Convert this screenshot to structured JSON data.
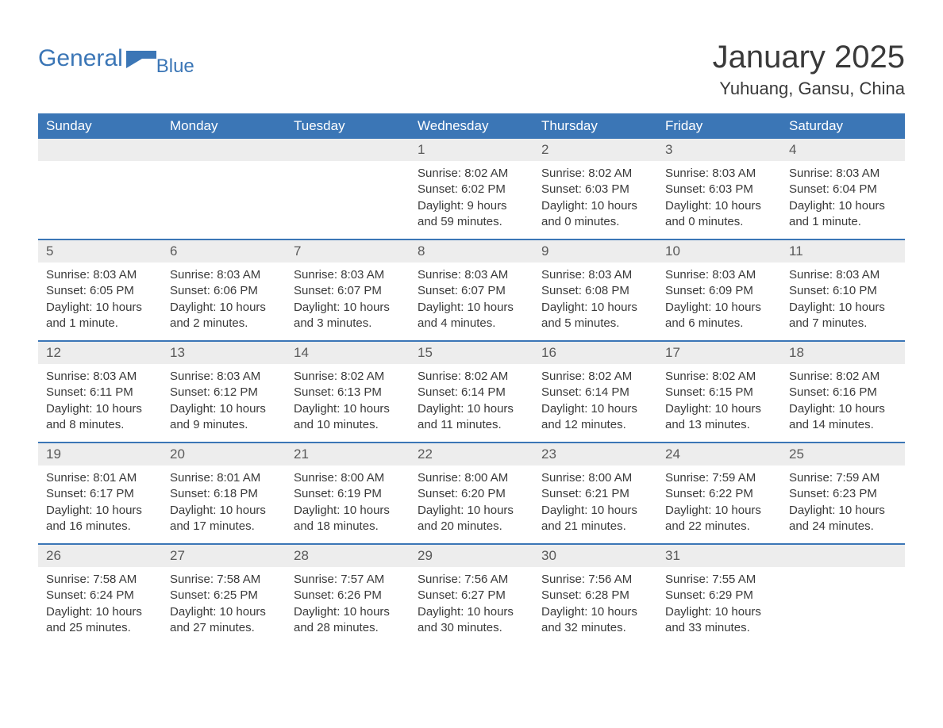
{
  "logo": {
    "main": "General",
    "sub": "Blue",
    "color": "#3b76b6"
  },
  "header": {
    "month_title": "January 2025",
    "location": "Yuhuang, Gansu, China"
  },
  "colors": {
    "header_bg": "#3b76b6",
    "header_text": "#ffffff",
    "daynum_bg": "#ededed",
    "daynum_text": "#5a5a5a",
    "body_text": "#3a3a3a",
    "week_border": "#3b76b6",
    "page_bg": "#ffffff"
  },
  "typography": {
    "month_title_fontsize": 40,
    "location_fontsize": 22,
    "weekday_fontsize": 17,
    "daynum_fontsize": 17,
    "body_fontsize": 15
  },
  "calendar": {
    "type": "table",
    "columns": [
      "Sunday",
      "Monday",
      "Tuesday",
      "Wednesday",
      "Thursday",
      "Friday",
      "Saturday"
    ],
    "weeks": [
      [
        {
          "day": "",
          "sunrise": "",
          "sunset": "",
          "daylight": ""
        },
        {
          "day": "",
          "sunrise": "",
          "sunset": "",
          "daylight": ""
        },
        {
          "day": "",
          "sunrise": "",
          "sunset": "",
          "daylight": ""
        },
        {
          "day": "1",
          "sunrise": "Sunrise: 8:02 AM",
          "sunset": "Sunset: 6:02 PM",
          "daylight": "Daylight: 9 hours and 59 minutes."
        },
        {
          "day": "2",
          "sunrise": "Sunrise: 8:02 AM",
          "sunset": "Sunset: 6:03 PM",
          "daylight": "Daylight: 10 hours and 0 minutes."
        },
        {
          "day": "3",
          "sunrise": "Sunrise: 8:03 AM",
          "sunset": "Sunset: 6:03 PM",
          "daylight": "Daylight: 10 hours and 0 minutes."
        },
        {
          "day": "4",
          "sunrise": "Sunrise: 8:03 AM",
          "sunset": "Sunset: 6:04 PM",
          "daylight": "Daylight: 10 hours and 1 minute."
        }
      ],
      [
        {
          "day": "5",
          "sunrise": "Sunrise: 8:03 AM",
          "sunset": "Sunset: 6:05 PM",
          "daylight": "Daylight: 10 hours and 1 minute."
        },
        {
          "day": "6",
          "sunrise": "Sunrise: 8:03 AM",
          "sunset": "Sunset: 6:06 PM",
          "daylight": "Daylight: 10 hours and 2 minutes."
        },
        {
          "day": "7",
          "sunrise": "Sunrise: 8:03 AM",
          "sunset": "Sunset: 6:07 PM",
          "daylight": "Daylight: 10 hours and 3 minutes."
        },
        {
          "day": "8",
          "sunrise": "Sunrise: 8:03 AM",
          "sunset": "Sunset: 6:07 PM",
          "daylight": "Daylight: 10 hours and 4 minutes."
        },
        {
          "day": "9",
          "sunrise": "Sunrise: 8:03 AM",
          "sunset": "Sunset: 6:08 PM",
          "daylight": "Daylight: 10 hours and 5 minutes."
        },
        {
          "day": "10",
          "sunrise": "Sunrise: 8:03 AM",
          "sunset": "Sunset: 6:09 PM",
          "daylight": "Daylight: 10 hours and 6 minutes."
        },
        {
          "day": "11",
          "sunrise": "Sunrise: 8:03 AM",
          "sunset": "Sunset: 6:10 PM",
          "daylight": "Daylight: 10 hours and 7 minutes."
        }
      ],
      [
        {
          "day": "12",
          "sunrise": "Sunrise: 8:03 AM",
          "sunset": "Sunset: 6:11 PM",
          "daylight": "Daylight: 10 hours and 8 minutes."
        },
        {
          "day": "13",
          "sunrise": "Sunrise: 8:03 AM",
          "sunset": "Sunset: 6:12 PM",
          "daylight": "Daylight: 10 hours and 9 minutes."
        },
        {
          "day": "14",
          "sunrise": "Sunrise: 8:02 AM",
          "sunset": "Sunset: 6:13 PM",
          "daylight": "Daylight: 10 hours and 10 minutes."
        },
        {
          "day": "15",
          "sunrise": "Sunrise: 8:02 AM",
          "sunset": "Sunset: 6:14 PM",
          "daylight": "Daylight: 10 hours and 11 minutes."
        },
        {
          "day": "16",
          "sunrise": "Sunrise: 8:02 AM",
          "sunset": "Sunset: 6:14 PM",
          "daylight": "Daylight: 10 hours and 12 minutes."
        },
        {
          "day": "17",
          "sunrise": "Sunrise: 8:02 AM",
          "sunset": "Sunset: 6:15 PM",
          "daylight": "Daylight: 10 hours and 13 minutes."
        },
        {
          "day": "18",
          "sunrise": "Sunrise: 8:02 AM",
          "sunset": "Sunset: 6:16 PM",
          "daylight": "Daylight: 10 hours and 14 minutes."
        }
      ],
      [
        {
          "day": "19",
          "sunrise": "Sunrise: 8:01 AM",
          "sunset": "Sunset: 6:17 PM",
          "daylight": "Daylight: 10 hours and 16 minutes."
        },
        {
          "day": "20",
          "sunrise": "Sunrise: 8:01 AM",
          "sunset": "Sunset: 6:18 PM",
          "daylight": "Daylight: 10 hours and 17 minutes."
        },
        {
          "day": "21",
          "sunrise": "Sunrise: 8:00 AM",
          "sunset": "Sunset: 6:19 PM",
          "daylight": "Daylight: 10 hours and 18 minutes."
        },
        {
          "day": "22",
          "sunrise": "Sunrise: 8:00 AM",
          "sunset": "Sunset: 6:20 PM",
          "daylight": "Daylight: 10 hours and 20 minutes."
        },
        {
          "day": "23",
          "sunrise": "Sunrise: 8:00 AM",
          "sunset": "Sunset: 6:21 PM",
          "daylight": "Daylight: 10 hours and 21 minutes."
        },
        {
          "day": "24",
          "sunrise": "Sunrise: 7:59 AM",
          "sunset": "Sunset: 6:22 PM",
          "daylight": "Daylight: 10 hours and 22 minutes."
        },
        {
          "day": "25",
          "sunrise": "Sunrise: 7:59 AM",
          "sunset": "Sunset: 6:23 PM",
          "daylight": "Daylight: 10 hours and 24 minutes."
        }
      ],
      [
        {
          "day": "26",
          "sunrise": "Sunrise: 7:58 AM",
          "sunset": "Sunset: 6:24 PM",
          "daylight": "Daylight: 10 hours and 25 minutes."
        },
        {
          "day": "27",
          "sunrise": "Sunrise: 7:58 AM",
          "sunset": "Sunset: 6:25 PM",
          "daylight": "Daylight: 10 hours and 27 minutes."
        },
        {
          "day": "28",
          "sunrise": "Sunrise: 7:57 AM",
          "sunset": "Sunset: 6:26 PM",
          "daylight": "Daylight: 10 hours and 28 minutes."
        },
        {
          "day": "29",
          "sunrise": "Sunrise: 7:56 AM",
          "sunset": "Sunset: 6:27 PM",
          "daylight": "Daylight: 10 hours and 30 minutes."
        },
        {
          "day": "30",
          "sunrise": "Sunrise: 7:56 AM",
          "sunset": "Sunset: 6:28 PM",
          "daylight": "Daylight: 10 hours and 32 minutes."
        },
        {
          "day": "31",
          "sunrise": "Sunrise: 7:55 AM",
          "sunset": "Sunset: 6:29 PM",
          "daylight": "Daylight: 10 hours and 33 minutes."
        },
        {
          "day": "",
          "sunrise": "",
          "sunset": "",
          "daylight": ""
        }
      ]
    ]
  }
}
